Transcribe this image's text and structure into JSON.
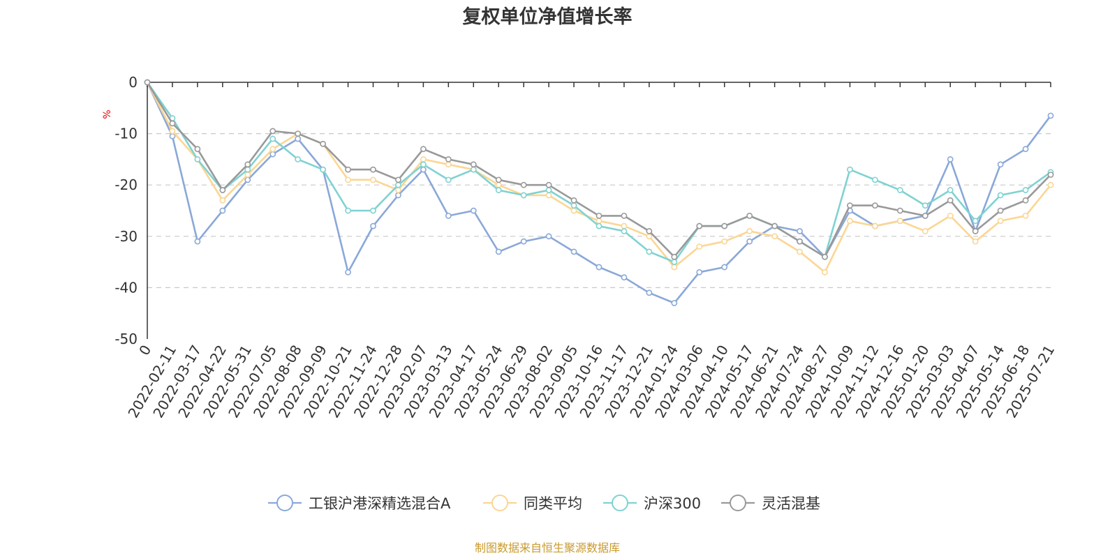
{
  "chart_data": {
    "type": "line",
    "title": "复权单位净值增长率",
    "ylabel": "%",
    "ylim": [
      -50,
      0
    ],
    "yticks": [
      0,
      -10,
      -20,
      -30,
      -40,
      -50
    ],
    "grid": true,
    "legend_position": "bottom",
    "x_first_label": "0",
    "x": [
      "2022-02-11",
      "2022-03-17",
      "2022-04-22",
      "2022-05-31",
      "2022-07-05",
      "2022-08-08",
      "2022-09-09",
      "2022-10-21",
      "2022-11-24",
      "2022-12-28",
      "2023-02-07",
      "2023-03-13",
      "2023-04-17",
      "2023-05-24",
      "2023-06-29",
      "2023-08-02",
      "2023-09-05",
      "2023-10-16",
      "2023-11-17",
      "2023-12-21",
      "2024-01-24",
      "2024-03-06",
      "2024-04-10",
      "2024-05-17",
      "2024-06-21",
      "2024-07-24",
      "2024-08-27",
      "2024-10-09",
      "2024-11-12",
      "2024-12-16",
      "2025-01-20",
      "2025-03-03",
      "2025-04-07",
      "2025-05-14",
      "2025-06-18",
      "2025-07-21"
    ],
    "series": [
      {
        "name": "工银沪港深精选混合A",
        "color": "#8aa8d8",
        "start": 0,
        "values": [
          -10.5,
          -31,
          -25,
          -19,
          -14,
          -11,
          -17,
          -37,
          -28,
          -22,
          -17,
          -26,
          -25,
          -33,
          -31,
          -30,
          -33,
          -36,
          -38,
          -41,
          -43,
          -37,
          -36,
          -31,
          -28,
          -29,
          -34,
          -25,
          -28,
          -27,
          -26,
          -15,
          -29,
          -16,
          -13,
          -6.5
        ]
      },
      {
        "name": "同类平均",
        "color": "#fbd693",
        "start": 0,
        "values": [
          -9.5,
          -15,
          -23,
          -18,
          -13,
          -10,
          -12,
          -19,
          -19,
          -21,
          -15,
          -16,
          -17,
          -20,
          -22,
          -22,
          -25,
          -27,
          -28,
          -30,
          -36,
          -32,
          -31,
          -29,
          -30,
          -33,
          -37,
          -27,
          -28,
          -27,
          -29,
          -26,
          -31,
          -27,
          -26,
          -20
        ]
      },
      {
        "name": "沪深300",
        "color": "#7fd2d2",
        "start": 0,
        "values": [
          -7,
          -15,
          -21,
          -17,
          -11,
          -15,
          -17,
          -25,
          -25,
          -20,
          -16,
          -19,
          -17,
          -21,
          -22,
          -21,
          -24,
          -28,
          -29,
          -33,
          -35,
          -28,
          -28,
          -26,
          -28,
          -31,
          -34,
          -17,
          -19,
          -21,
          -24,
          -21,
          -27,
          -22,
          -21,
          -17.5
        ]
      },
      {
        "name": "灵活混基",
        "color": "#999999",
        "start": 0,
        "values": [
          -8,
          -13,
          -21,
          -16,
          -9.5,
          -10,
          -12,
          -17,
          -17,
          -19,
          -13,
          -15,
          -16,
          -19,
          -20,
          -20,
          -23,
          -26,
          -26,
          -29,
          -34,
          -28,
          -28,
          -26,
          -28,
          -31,
          -34,
          -24,
          -24,
          -25,
          -26,
          -23,
          -29,
          -25,
          -23,
          -18
        ]
      }
    ]
  },
  "source_note": "制图数据来自恒生聚源数据库"
}
